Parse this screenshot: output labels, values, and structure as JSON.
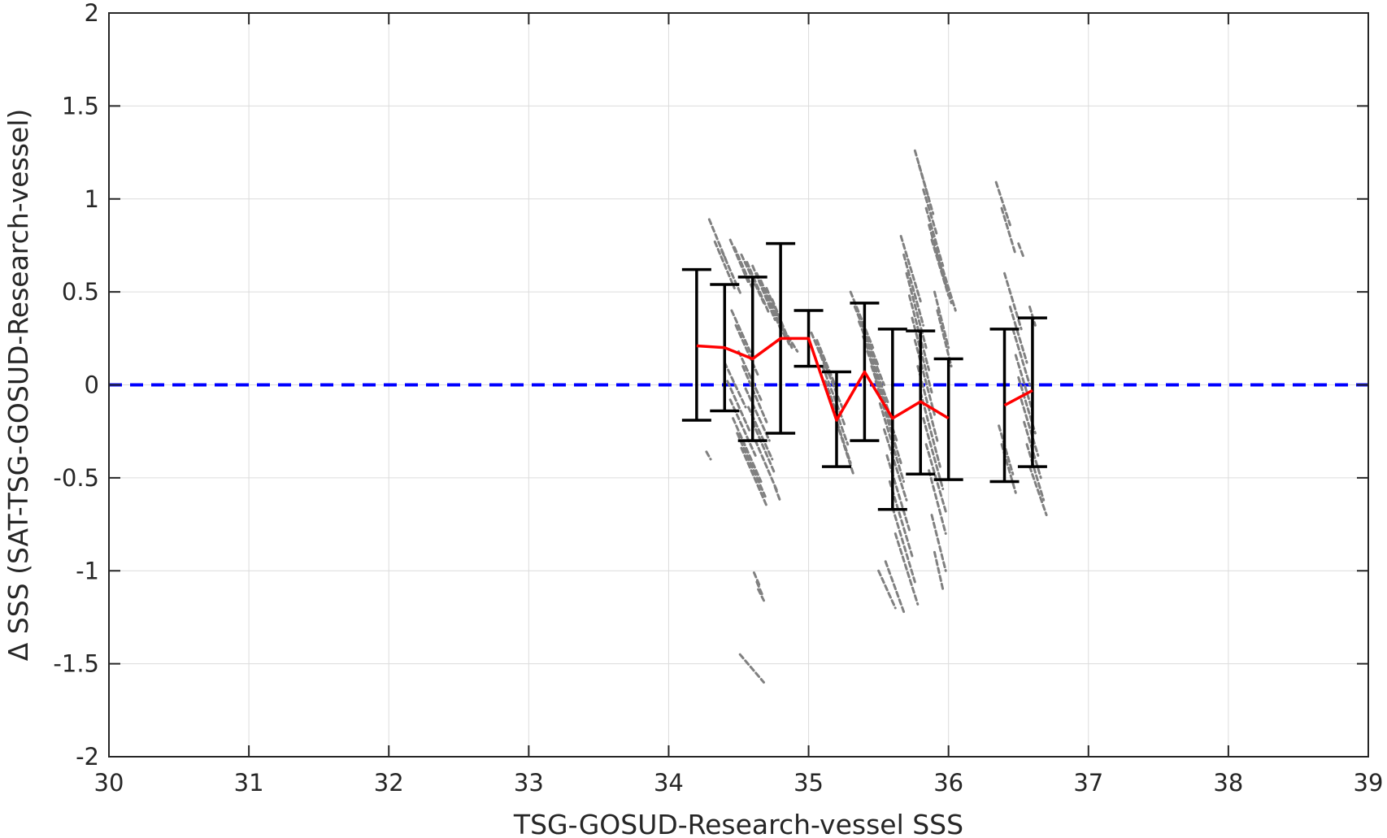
{
  "chart_data": {
    "type": "scatter",
    "title": "",
    "xlabel": "TSG-GOSUD-Research-vessel SSS",
    "ylabel": "Δ SSS (SAT-TSG-GOSUD-Research-vessel)",
    "xlim": [
      30,
      39
    ],
    "ylim": [
      -2,
      2
    ],
    "xticks": [
      "30",
      "31",
      "32",
      "33",
      "34",
      "35",
      "36",
      "37",
      "38",
      "39"
    ],
    "yticks": [
      "2",
      "1.5",
      "1",
      "0.5",
      "0",
      "-0.5",
      "-1",
      "-1.5",
      "-2"
    ],
    "grid": true,
    "colors": {
      "scatter": "#808080",
      "mean_line": "#ff0000",
      "error_bars": "#000000",
      "zero_line": "#0000ff"
    },
    "zero_line": {
      "y": 0,
      "style": "dashed"
    },
    "mean_line": {
      "x": [
        34.2,
        34.4,
        34.6,
        34.8,
        35.0,
        35.2,
        35.4,
        35.6,
        35.8,
        36.0
      ],
      "y": [
        0.21,
        0.2,
        0.14,
        0.25,
        0.25,
        -0.19,
        0.07,
        -0.18,
        -0.09,
        -0.18
      ]
    },
    "mean_line_2": {
      "x": [
        36.4,
        36.6
      ],
      "y": [
        -0.11,
        -0.03
      ]
    },
    "error_bars": [
      {
        "x": 34.2,
        "low": -0.19,
        "high": 0.62
      },
      {
        "x": 34.4,
        "low": -0.14,
        "high": 0.54
      },
      {
        "x": 34.6,
        "low": -0.3,
        "high": 0.58
      },
      {
        "x": 34.8,
        "low": -0.26,
        "high": 0.76
      },
      {
        "x": 35.0,
        "low": 0.1,
        "high": 0.4
      },
      {
        "x": 35.2,
        "low": -0.44,
        "high": 0.07
      },
      {
        "x": 35.4,
        "low": -0.3,
        "high": 0.44
      },
      {
        "x": 35.6,
        "low": -0.67,
        "high": 0.3
      },
      {
        "x": 35.8,
        "low": -0.48,
        "high": 0.29
      },
      {
        "x": 36.0,
        "low": -0.51,
        "high": 0.14
      },
      {
        "x": 36.4,
        "low": -0.52,
        "high": 0.3
      },
      {
        "x": 36.6,
        "low": -0.44,
        "high": 0.36
      }
    ],
    "scatter_segments": [
      {
        "x1": 34.29,
        "y1": 0.89,
        "x2": 34.41,
        "y2": 0.67
      },
      {
        "x1": 34.33,
        "y1": 0.77,
        "x2": 34.47,
        "y2": 0.52
      },
      {
        "x1": 34.38,
        "y1": 0.72,
        "x2": 34.52,
        "y2": 0.48
      },
      {
        "x1": 34.44,
        "y1": 0.78,
        "x2": 34.57,
        "y2": 0.55
      },
      {
        "x1": 34.47,
        "y1": 0.74,
        "x2": 34.61,
        "y2": 0.5
      },
      {
        "x1": 34.52,
        "y1": 0.7,
        "x2": 34.68,
        "y2": 0.44
      },
      {
        "x1": 34.56,
        "y1": 0.66,
        "x2": 34.72,
        "y2": 0.38
      },
      {
        "x1": 34.6,
        "y1": 0.64,
        "x2": 34.76,
        "y2": 0.35
      },
      {
        "x1": 34.63,
        "y1": 0.6,
        "x2": 34.8,
        "y2": 0.3
      },
      {
        "x1": 34.66,
        "y1": 0.56,
        "x2": 34.83,
        "y2": 0.26
      },
      {
        "x1": 34.7,
        "y1": 0.52,
        "x2": 34.86,
        "y2": 0.22
      },
      {
        "x1": 34.74,
        "y1": 0.46,
        "x2": 34.88,
        "y2": 0.2
      },
      {
        "x1": 34.45,
        "y1": 0.4,
        "x2": 34.6,
        "y2": 0.15
      },
      {
        "x1": 34.48,
        "y1": 0.32,
        "x2": 34.64,
        "y2": 0.05
      },
      {
        "x1": 34.5,
        "y1": 0.18,
        "x2": 34.66,
        "y2": -0.08
      },
      {
        "x1": 34.53,
        "y1": 0.1,
        "x2": 34.7,
        "y2": -0.2
      },
      {
        "x1": 34.55,
        "y1": -0.02,
        "x2": 34.72,
        "y2": -0.3
      },
      {
        "x1": 34.57,
        "y1": -0.12,
        "x2": 34.74,
        "y2": -0.4
      },
      {
        "x1": 34.6,
        "y1": -0.2,
        "x2": 34.76,
        "y2": -0.48
      },
      {
        "x1": 34.62,
        "y1": -0.3,
        "x2": 34.78,
        "y2": -0.58
      },
      {
        "x1": 34.4,
        "y1": 0.12,
        "x2": 34.55,
        "y2": -0.12
      },
      {
        "x1": 34.42,
        "y1": 0.02,
        "x2": 34.58,
        "y2": -0.25
      },
      {
        "x1": 34.44,
        "y1": -0.08,
        "x2": 34.62,
        "y2": -0.38
      },
      {
        "x1": 34.46,
        "y1": -0.18,
        "x2": 34.66,
        "y2": -0.52
      },
      {
        "x1": 34.49,
        "y1": -0.26,
        "x2": 34.69,
        "y2": -0.6
      },
      {
        "x1": 34.52,
        "y1": -0.34,
        "x2": 34.7,
        "y2": -0.65
      },
      {
        "x1": 34.27,
        "y1": -0.36,
        "x2": 34.3,
        "y2": -0.4
      },
      {
        "x1": 34.76,
        "y1": -0.55,
        "x2": 34.8,
        "y2": -0.63
      },
      {
        "x1": 34.61,
        "y1": -1.01,
        "x2": 34.65,
        "y2": -1.08
      },
      {
        "x1": 34.63,
        "y1": -1.06,
        "x2": 34.67,
        "y2": -1.13
      },
      {
        "x1": 34.64,
        "y1": -1.1,
        "x2": 34.68,
        "y2": -1.16
      },
      {
        "x1": 34.51,
        "y1": -1.45,
        "x2": 34.68,
        "y2": -1.6
      },
      {
        "x1": 34.82,
        "y1": 0.3,
        "x2": 34.92,
        "y2": 0.18
      },
      {
        "x1": 35.02,
        "y1": 0.28,
        "x2": 35.14,
        "y2": 0.06
      },
      {
        "x1": 35.06,
        "y1": 0.24,
        "x2": 35.2,
        "y2": -0.02
      },
      {
        "x1": 35.08,
        "y1": 0.18,
        "x2": 35.24,
        "y2": -0.12
      },
      {
        "x1": 35.1,
        "y1": 0.1,
        "x2": 35.26,
        "y2": -0.22
      },
      {
        "x1": 35.12,
        "y1": 0.02,
        "x2": 35.28,
        "y2": -0.32
      },
      {
        "x1": 35.15,
        "y1": -0.08,
        "x2": 35.3,
        "y2": -0.42
      },
      {
        "x1": 35.2,
        "y1": -0.2,
        "x2": 35.32,
        "y2": -0.48
      },
      {
        "x1": 35.3,
        "y1": 0.5,
        "x2": 35.46,
        "y2": 0.2
      },
      {
        "x1": 35.33,
        "y1": 0.42,
        "x2": 35.5,
        "y2": 0.1
      },
      {
        "x1": 35.36,
        "y1": 0.34,
        "x2": 35.54,
        "y2": 0.0
      },
      {
        "x1": 35.39,
        "y1": 0.26,
        "x2": 35.57,
        "y2": -0.1
      },
      {
        "x1": 35.42,
        "y1": 0.18,
        "x2": 35.6,
        "y2": -0.2
      },
      {
        "x1": 35.45,
        "y1": 0.1,
        "x2": 35.63,
        "y2": -0.3
      },
      {
        "x1": 35.48,
        "y1": 0.02,
        "x2": 35.66,
        "y2": -0.42
      },
      {
        "x1": 35.51,
        "y1": -0.1,
        "x2": 35.68,
        "y2": -0.52
      },
      {
        "x1": 35.54,
        "y1": -0.24,
        "x2": 35.7,
        "y2": -0.62
      },
      {
        "x1": 35.56,
        "y1": -0.38,
        "x2": 35.72,
        "y2": -0.78
      },
      {
        "x1": 35.58,
        "y1": -0.52,
        "x2": 35.74,
        "y2": -0.92
      },
      {
        "x1": 35.6,
        "y1": -0.66,
        "x2": 35.76,
        "y2": -1.06
      },
      {
        "x1": 35.62,
        "y1": -0.8,
        "x2": 35.78,
        "y2": -1.18
      },
      {
        "x1": 35.55,
        "y1": -0.95,
        "x2": 35.68,
        "y2": -1.22
      },
      {
        "x1": 35.5,
        "y1": -1.0,
        "x2": 35.62,
        "y2": -1.2
      },
      {
        "x1": 35.66,
        "y1": 0.8,
        "x2": 35.8,
        "y2": 0.45
      },
      {
        "x1": 35.68,
        "y1": 0.7,
        "x2": 35.82,
        "y2": 0.32
      },
      {
        "x1": 35.7,
        "y1": 0.6,
        "x2": 35.84,
        "y2": 0.2
      },
      {
        "x1": 35.72,
        "y1": 0.48,
        "x2": 35.86,
        "y2": 0.08
      },
      {
        "x1": 35.74,
        "y1": 0.36,
        "x2": 35.88,
        "y2": -0.04
      },
      {
        "x1": 35.76,
        "y1": 0.24,
        "x2": 35.9,
        "y2": -0.16
      },
      {
        "x1": 35.78,
        "y1": 0.1,
        "x2": 35.92,
        "y2": -0.3
      },
      {
        "x1": 35.8,
        "y1": -0.04,
        "x2": 35.94,
        "y2": -0.44
      },
      {
        "x1": 35.82,
        "y1": -0.18,
        "x2": 35.96,
        "y2": -0.56
      },
      {
        "x1": 35.84,
        "y1": -0.32,
        "x2": 35.98,
        "y2": -0.68
      },
      {
        "x1": 35.86,
        "y1": -0.46,
        "x2": 35.98,
        "y2": -0.8
      },
      {
        "x1": 35.76,
        "y1": 1.26,
        "x2": 35.86,
        "y2": 1.0
      },
      {
        "x1": 35.79,
        "y1": 1.18,
        "x2": 35.89,
        "y2": 0.92
      },
      {
        "x1": 35.82,
        "y1": 1.05,
        "x2": 35.92,
        "y2": 0.8
      },
      {
        "x1": 35.84,
        "y1": 0.95,
        "x2": 35.96,
        "y2": 0.64
      },
      {
        "x1": 35.86,
        "y1": 0.86,
        "x2": 35.98,
        "y2": 0.54
      },
      {
        "x1": 35.88,
        "y1": 0.78,
        "x2": 36.0,
        "y2": 0.48
      },
      {
        "x1": 35.92,
        "y1": 0.7,
        "x2": 36.02,
        "y2": 0.44
      },
      {
        "x1": 35.96,
        "y1": 0.62,
        "x2": 36.05,
        "y2": 0.4
      },
      {
        "x1": 35.9,
        "y1": 0.5,
        "x2": 36.0,
        "y2": 0.2
      },
      {
        "x1": 35.92,
        "y1": 0.4,
        "x2": 36.02,
        "y2": 0.1
      },
      {
        "x1": 35.88,
        "y1": -0.7,
        "x2": 35.98,
        "y2": -1.0
      },
      {
        "x1": 35.9,
        "y1": -0.9,
        "x2": 35.96,
        "y2": -1.1
      },
      {
        "x1": 36.34,
        "y1": 1.09,
        "x2": 36.44,
        "y2": 0.86
      },
      {
        "x1": 36.38,
        "y1": 0.95,
        "x2": 36.48,
        "y2": 0.7
      },
      {
        "x1": 36.4,
        "y1": 0.6,
        "x2": 36.52,
        "y2": 0.3
      },
      {
        "x1": 36.44,
        "y1": 0.42,
        "x2": 36.56,
        "y2": 0.12
      },
      {
        "x1": 36.46,
        "y1": 0.3,
        "x2": 36.58,
        "y2": 0.0
      },
      {
        "x1": 36.48,
        "y1": 0.16,
        "x2": 36.6,
        "y2": -0.14
      },
      {
        "x1": 36.5,
        "y1": 0.04,
        "x2": 36.62,
        "y2": -0.26
      },
      {
        "x1": 36.52,
        "y1": -0.08,
        "x2": 36.64,
        "y2": -0.38
      },
      {
        "x1": 36.54,
        "y1": -0.2,
        "x2": 36.66,
        "y2": -0.5
      },
      {
        "x1": 36.56,
        "y1": -0.32,
        "x2": 36.68,
        "y2": -0.62
      },
      {
        "x1": 36.58,
        "y1": -0.44,
        "x2": 36.7,
        "y2": -0.7
      },
      {
        "x1": 36.38,
        "y1": -0.32,
        "x2": 36.48,
        "y2": -0.58
      },
      {
        "x1": 36.36,
        "y1": -0.22,
        "x2": 36.46,
        "y2": -0.48
      },
      {
        "x1": 36.5,
        "y1": 0.76,
        "x2": 36.54,
        "y2": 0.68
      },
      {
        "x1": 36.58,
        "y1": 0.42,
        "x2": 36.62,
        "y2": 0.32
      }
    ]
  }
}
